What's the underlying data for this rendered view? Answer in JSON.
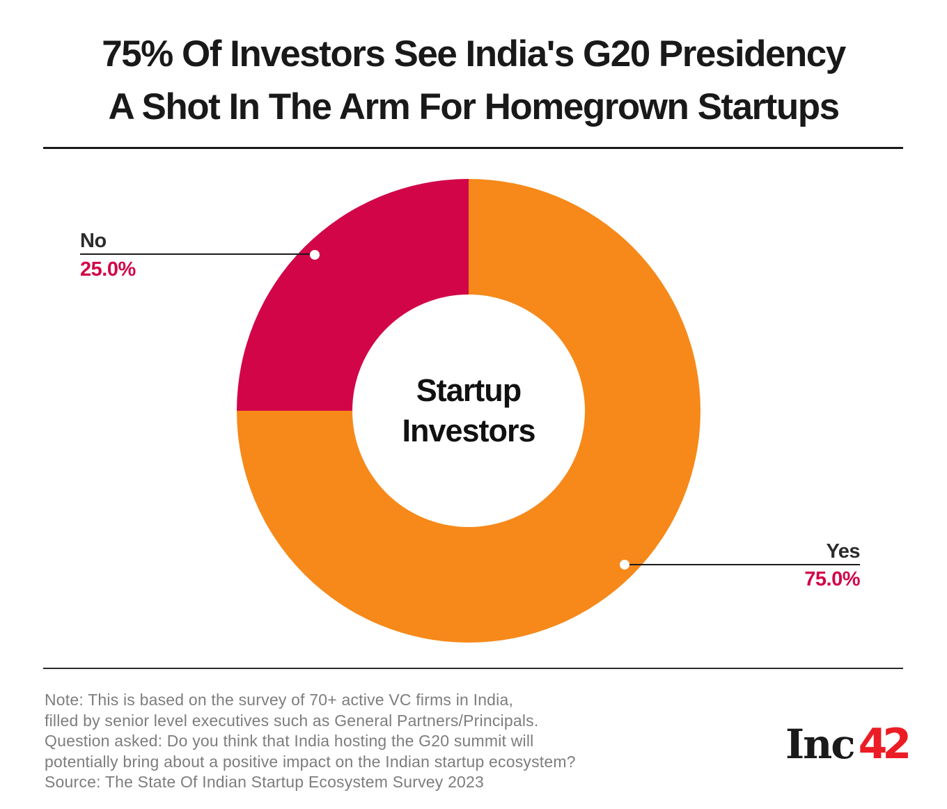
{
  "title": {
    "line1": "75% Of Investors See India's G20 Presidency",
    "line2": "A Shot In The Arm For Homegrown Startups"
  },
  "chart": {
    "center_label_line1": "Startup",
    "center_label_line2": "Investors",
    "callouts": {
      "yes": {
        "label": "Yes",
        "value": "75.0%"
      },
      "no": {
        "label": "No",
        "value": "25.0%"
      }
    }
  },
  "chart_data": {
    "type": "pie",
    "subtype": "donut",
    "title": "75% Of Investors See India's G20 Presidency A Shot In The Arm For Homegrown Startups",
    "center_label": "Startup Investors",
    "categories": [
      "Yes",
      "No"
    ],
    "values": [
      75.0,
      25.0
    ],
    "value_labels": [
      "75.0%",
      "25.0%"
    ],
    "colors": [
      "#f6891a",
      "#d20549"
    ],
    "start_angle": "12 o'clock",
    "direction": "clockwise",
    "inner_radius_ratio": 0.5,
    "legend_position": "callout-leader-lines",
    "label_color": "#2b2b2b",
    "value_color": "#d20549"
  },
  "note": {
    "lines": [
      "Note: This is based on the survey of 70+ active VC firms in India,",
      "filled by senior level executives such as General Partners/Principals.",
      "Question asked: Do you think that India hosting the G20 summit will",
      "potentially bring about a positive impact on the Indian startup ecosystem?",
      "Source: The State Of Indian Startup Ecosystem Survey 2023"
    ]
  },
  "logo": {
    "text_black": "Inc",
    "text_red": "42",
    "red_color": "#ec1c24"
  }
}
